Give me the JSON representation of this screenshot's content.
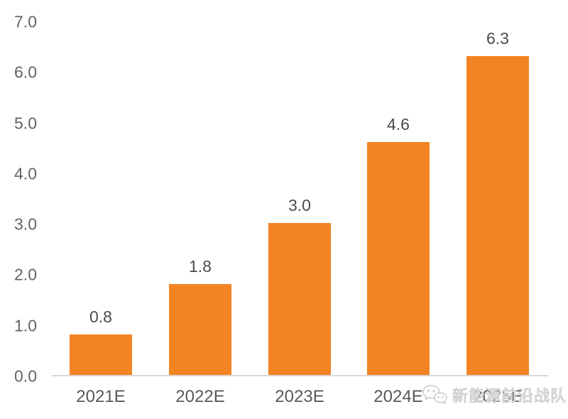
{
  "chart_data": {
    "type": "bar",
    "title": "",
    "xlabel": "",
    "ylabel": "",
    "categories": [
      "2021E",
      "2022E",
      "2023E",
      "2024E",
      "2025E"
    ],
    "values": [
      0.8,
      1.8,
      3.0,
      4.6,
      6.3
    ],
    "bar_labels": [
      "0.8",
      "1.8",
      "3.0",
      "4.6",
      "6.3"
    ],
    "ylim": [
      0.0,
      7.0
    ],
    "yticks": [
      0.0,
      1.0,
      2.0,
      3.0,
      4.0,
      5.0,
      6.0,
      7.0
    ],
    "ytick_labels": [
      "0.0",
      "1.0",
      "2.0",
      "3.0",
      "4.0",
      "5.0",
      "6.0",
      "7.0"
    ],
    "grid": false,
    "legend": null,
    "bar_color": "#F38424"
  },
  "colors": {
    "bar": "#F38424",
    "tick_text": "#636363",
    "x_label_text": "#595959",
    "data_label_text": "#4a4a4a",
    "axis_line": "#D9D9D9",
    "watermark": "#C7C7C7"
  },
  "watermark": {
    "text": "新能源前沿战队",
    "icon": "wechat-icon"
  }
}
